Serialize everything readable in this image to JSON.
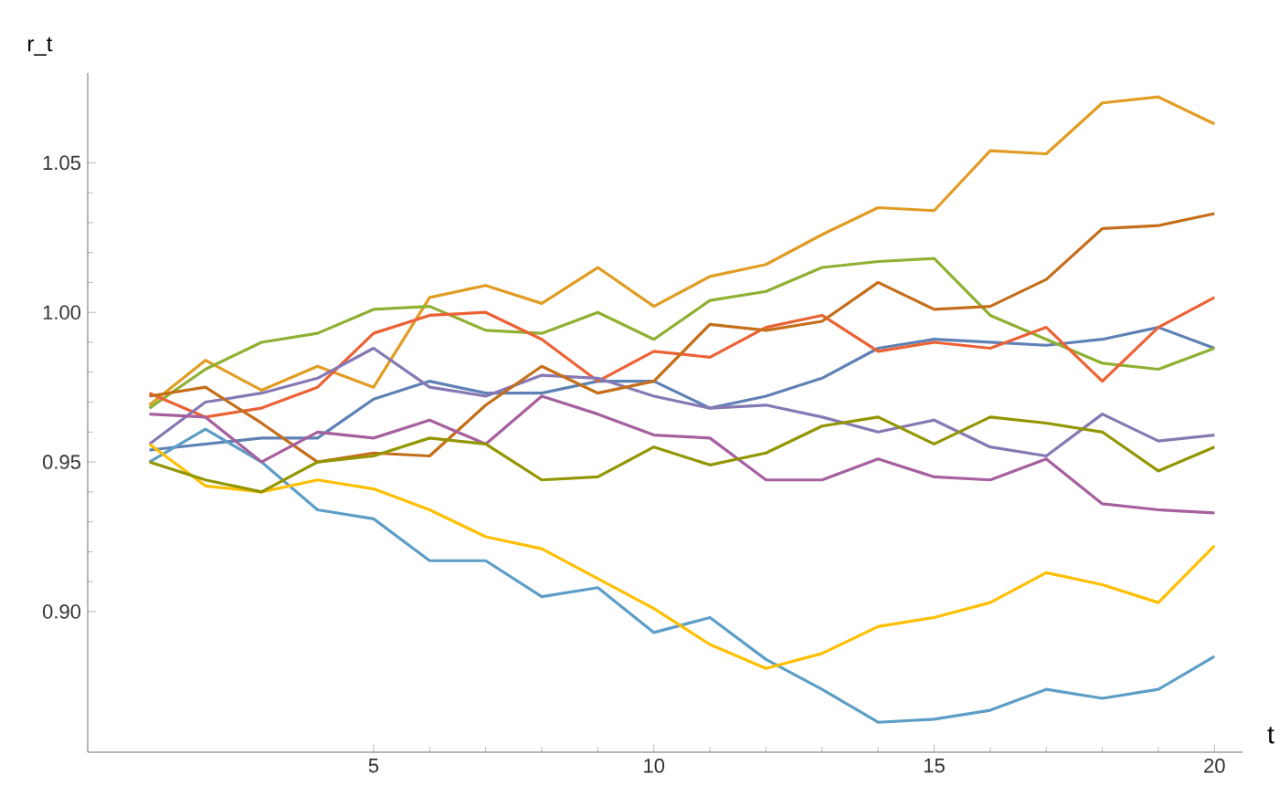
{
  "chart_data": {
    "type": "line",
    "xlabel": "t",
    "ylabel": "r_t",
    "x": [
      1,
      2,
      3,
      4,
      5,
      6,
      7,
      8,
      9,
      10,
      11,
      12,
      13,
      14,
      15,
      16,
      17,
      18,
      19,
      20
    ],
    "xlim": [
      -0.1,
      20.5
    ],
    "xticks": [
      5,
      10,
      15,
      20
    ],
    "ylim": [
      0.853,
      1.08
    ],
    "yticks": [
      {
        "value": 0.9,
        "label": "0.90"
      },
      {
        "value": 0.95,
        "label": "0.95"
      },
      {
        "value": 1.0,
        "label": "1.00"
      },
      {
        "value": 1.05,
        "label": "1.05"
      }
    ],
    "grid": false,
    "legend": false,
    "marker": "none",
    "line_style": "solid",
    "series": [
      {
        "color": "#5e81b5",
        "values": [
          0.954,
          0.956,
          0.958,
          0.958,
          0.971,
          0.977,
          0.973,
          0.973,
          0.977,
          0.977,
          0.968,
          0.972,
          0.978,
          0.988,
          0.991,
          0.99,
          0.989,
          0.991,
          0.995,
          0.988
        ]
      },
      {
        "color": "#e19c24",
        "values": [
          0.969,
          0.984,
          0.974,
          0.982,
          0.975,
          1.005,
          1.009,
          1.003,
          1.015,
          1.002,
          1.012,
          1.016,
          1.026,
          1.035,
          1.034,
          1.054,
          1.053,
          1.07,
          1.072,
          1.063
        ]
      },
      {
        "color": "#8fb032",
        "values": [
          0.968,
          0.981,
          0.99,
          0.993,
          1.001,
          1.002,
          0.994,
          0.993,
          1.0,
          0.991,
          1.004,
          1.007,
          1.015,
          1.017,
          1.018,
          0.999,
          0.991,
          0.983,
          0.981,
          0.988
        ]
      },
      {
        "color": "#eb6235",
        "values": [
          0.973,
          0.965,
          0.968,
          0.975,
          0.993,
          0.999,
          1.0,
          0.991,
          0.977,
          0.987,
          0.985,
          0.995,
          0.999,
          0.987,
          0.99,
          0.988,
          0.995,
          0.977,
          0.995,
          1.005
        ]
      },
      {
        "color": "#8778b3",
        "values": [
          0.956,
          0.97,
          0.973,
          0.978,
          0.988,
          0.975,
          0.972,
          0.979,
          0.978,
          0.972,
          0.968,
          0.969,
          0.965,
          0.96,
          0.964,
          0.955,
          0.952,
          0.966,
          0.957,
          0.959
        ]
      },
      {
        "color": "#c56e1a",
        "values": [
          0.972,
          0.975,
          0.963,
          0.95,
          0.953,
          0.952,
          0.969,
          0.982,
          0.973,
          0.977,
          0.996,
          0.994,
          0.997,
          1.01,
          1.001,
          1.002,
          1.011,
          1.028,
          1.029,
          1.033
        ]
      },
      {
        "color": "#5d9ec7",
        "values": [
          0.95,
          0.961,
          0.95,
          0.934,
          0.931,
          0.917,
          0.917,
          0.905,
          0.908,
          0.893,
          0.898,
          0.884,
          0.874,
          0.863,
          0.864,
          0.867,
          0.874,
          0.871,
          0.874,
          0.885
        ]
      },
      {
        "color": "#ffbf00",
        "values": [
          0.956,
          0.942,
          0.94,
          0.944,
          0.941,
          0.934,
          0.925,
          0.921,
          0.911,
          0.901,
          0.889,
          0.881,
          0.886,
          0.895,
          0.898,
          0.903,
          0.913,
          0.909,
          0.903,
          0.922
        ]
      },
      {
        "color": "#a5609d",
        "values": [
          0.966,
          0.965,
          0.95,
          0.96,
          0.958,
          0.964,
          0.956,
          0.972,
          0.966,
          0.959,
          0.958,
          0.944,
          0.944,
          0.951,
          0.945,
          0.944,
          0.951,
          0.936,
          0.934,
          0.933
        ]
      },
      {
        "color": "#929600",
        "values": [
          0.95,
          0.944,
          0.94,
          0.95,
          0.952,
          0.958,
          0.956,
          0.944,
          0.945,
          0.955,
          0.949,
          0.953,
          0.962,
          0.965,
          0.956,
          0.965,
          0.963,
          0.96,
          0.947,
          0.955
        ]
      }
    ]
  }
}
